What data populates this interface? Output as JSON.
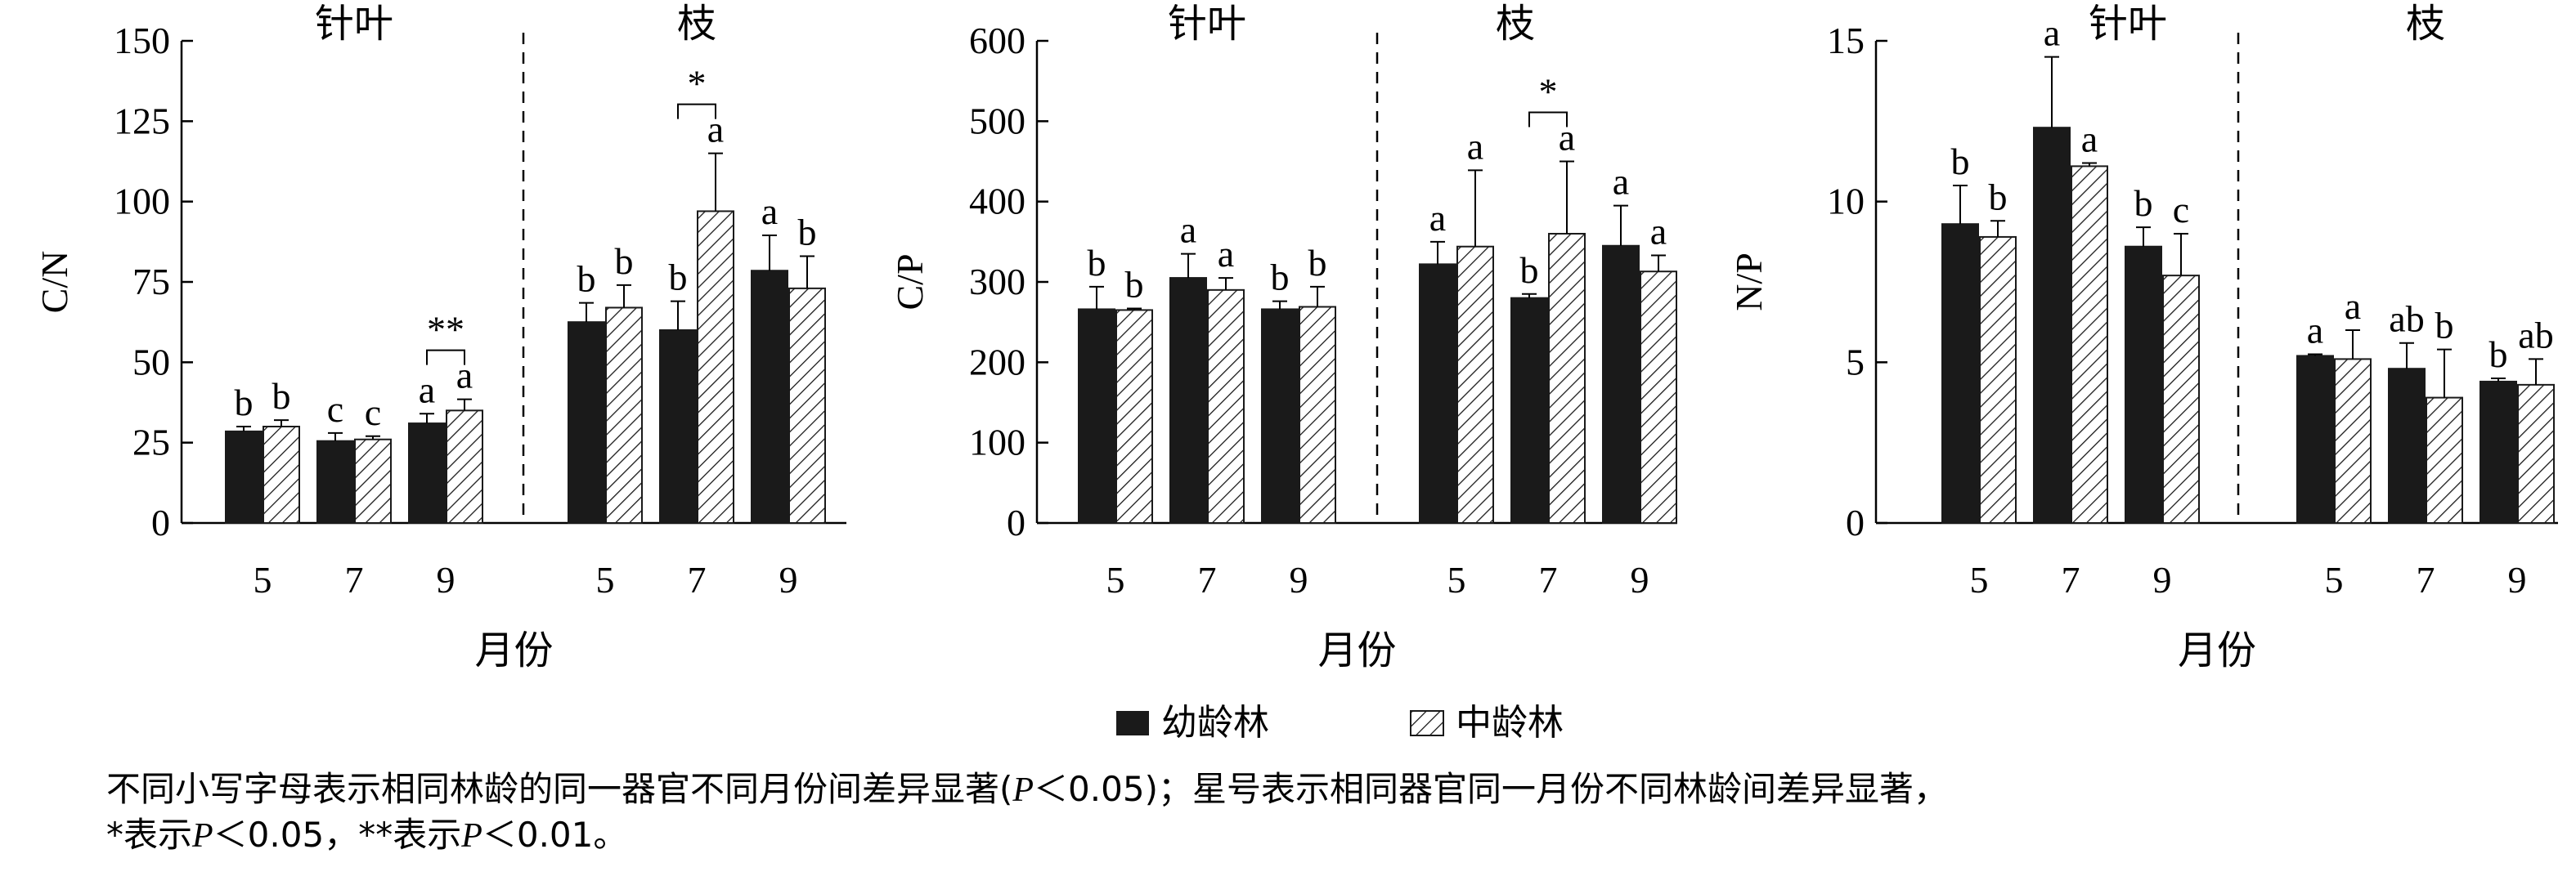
{
  "legend": [
    {
      "label": "幼龄林",
      "fill": "#1a1a1a",
      "pattern": "solid"
    },
    {
      "label": "中龄林",
      "fill": "#ffffff",
      "pattern": "hatch"
    }
  ],
  "caption": {
    "line1_a": "不同小写字母表示相同林龄的同一器官不同月份间差异显著(",
    "p": "P",
    "line1_b": "＜0.05)；星号表示相同器官同一月份不同林龄间差异显著，",
    "line2_a": "*表示",
    "line2_b": "＜0.05，**表示",
    "line2_c": "＜0.01。"
  },
  "chart_data": [
    {
      "type": "bar",
      "ylabel": "C/N",
      "xlabel": "月份",
      "ylim": [
        0,
        150
      ],
      "yticks": [
        "0",
        "25",
        "50",
        "75",
        "100",
        "125",
        "150"
      ],
      "groups": [
        "针叶",
        "枝"
      ],
      "categories": [
        "5",
        "7",
        "9"
      ],
      "series": [
        {
          "name": "幼龄林",
          "values": [
            [
              28.5,
              25.5,
              31.0
            ],
            [
              62.5,
              60.0,
              78.5
            ]
          ],
          "errors": [
            [
              1.5,
              2.5,
              3.0
            ],
            [
              6.0,
              9.0,
              11.0
            ]
          ],
          "letters": [
            [
              "b",
              "c",
              "a"
            ],
            [
              "b",
              "b",
              "a"
            ]
          ]
        },
        {
          "name": "中龄林",
          "values": [
            [
              30.0,
              26.0,
              35.0
            ],
            [
              67.0,
              97.0,
              73.0
            ]
          ],
          "errors": [
            [
              2.0,
              1.0,
              3.5
            ],
            [
              7.0,
              18.0,
              10.0
            ]
          ],
          "letters": [
            [
              "b",
              "c",
              "a"
            ],
            [
              "b",
              "a",
              "b"
            ]
          ]
        }
      ],
      "significance": [
        {
          "group": 0,
          "category": 2,
          "mark": "**"
        },
        {
          "group": 1,
          "category": 1,
          "mark": "*"
        }
      ]
    },
    {
      "type": "bar",
      "ylabel": "C/P",
      "xlabel": "月份",
      "ylim": [
        0,
        600
      ],
      "yticks": [
        "0",
        "100",
        "200",
        "300",
        "400",
        "500",
        "600"
      ],
      "groups": [
        "针叶",
        "枝"
      ],
      "categories": [
        "5",
        "7",
        "9"
      ],
      "series": [
        {
          "name": "幼龄林",
          "values": [
            [
              266,
              305,
              266
            ],
            [
              322,
              280,
              345
            ]
          ],
          "errors": [
            [
              28,
              30,
              10
            ],
            [
              28,
              5,
              50
            ]
          ],
          "letters": [
            [
              "b",
              "a",
              "b"
            ],
            [
              "a",
              "b",
              "a"
            ]
          ]
        },
        {
          "name": "中龄林",
          "values": [
            [
              265,
              290,
              269
            ],
            [
              344,
              360,
              313
            ]
          ],
          "errors": [
            [
              2,
              15,
              25
            ],
            [
              95,
              90,
              20
            ]
          ],
          "letters": [
            [
              "b",
              "a",
              "b"
            ],
            [
              "a",
              "a",
              "a"
            ]
          ]
        }
      ],
      "significance": [
        {
          "group": 1,
          "category": 1,
          "mark": "*"
        }
      ]
    },
    {
      "type": "bar",
      "ylabel": "N/P",
      "xlabel": "月份",
      "ylim": [
        0,
        15
      ],
      "yticks": [
        "0",
        "5",
        "10",
        "15"
      ],
      "groups": [
        "针叶",
        "枝"
      ],
      "categories": [
        "5",
        "7",
        "9"
      ],
      "series": [
        {
          "name": "幼龄林",
          "values": [
            [
              9.3,
              12.3,
              8.6
            ],
            [
              5.2,
              4.8,
              4.4
            ]
          ],
          "errors": [
            [
              1.2,
              2.2,
              0.6
            ],
            [
              0.05,
              0.8,
              0.1
            ]
          ],
          "letters": [
            [
              "b",
              "a",
              "b"
            ],
            [
              "a",
              "ab",
              "b"
            ]
          ]
        },
        {
          "name": "中龄林",
          "values": [
            [
              8.9,
              11.1,
              7.7
            ],
            [
              5.1,
              3.9,
              4.3
            ]
          ],
          "errors": [
            [
              0.5,
              0.1,
              1.3
            ],
            [
              0.9,
              1.5,
              0.8
            ]
          ],
          "letters": [
            [
              "b",
              "a",
              "c"
            ],
            [
              "a",
              "b",
              "ab"
            ]
          ]
        }
      ],
      "significance": []
    }
  ]
}
